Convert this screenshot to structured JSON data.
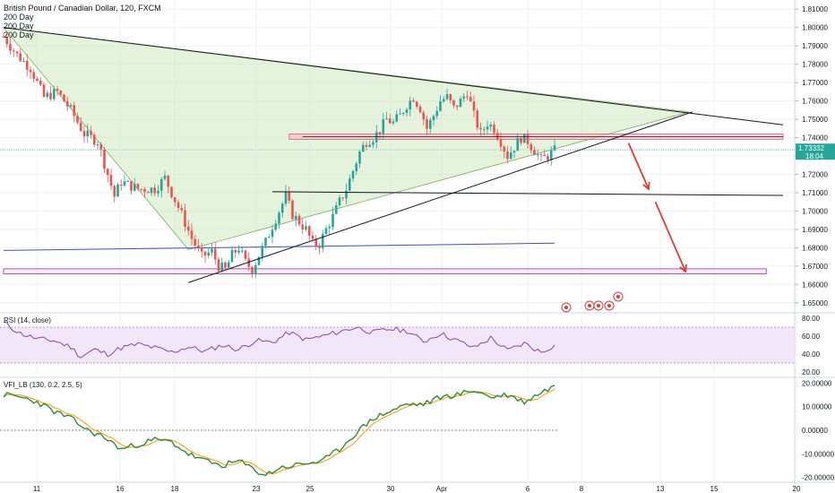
{
  "header": {
    "title": "British Pound / Canadian Dollar, 120, FXCM",
    "studies": [
      "200 Day",
      "200 Day",
      "200 Day"
    ]
  },
  "colors": {
    "up": "#26a69a",
    "down": "#ef5350",
    "triangle_fill": "#cfe8c0",
    "triangle_edge": "#7cb05a",
    "trendline": "#131722",
    "resistance_box_fill": "#f7b7c0",
    "resistance_box_edge": "#e0607e",
    "support_box_edge": "#9c27b0",
    "ma_line": "#3f51b5",
    "price_line": "#26a69a",
    "rsi_line": "#8e44ad",
    "rsi_band": "#ecdcf7",
    "vfi_line": "#2e8b3a",
    "vfi_signal": "#ff9800",
    "arrow": "#e53935",
    "axis_text": "#131722",
    "grid": "#eef0f3"
  },
  "price_axis": {
    "ticks": [
      "1.81000",
      "1.80000",
      "1.79000",
      "1.78000",
      "1.77000",
      "1.76000",
      "1.75000",
      "1.74000",
      "1.73000",
      "1.72000",
      "1.71000",
      "1.70000",
      "1.69000",
      "1.68000",
      "1.67000",
      "1.66000",
      "1.65000"
    ],
    "last_price": "1.73332",
    "countdown": "18:04"
  },
  "rsi_panel": {
    "label": "RSI (14, close)",
    "ticks": [
      "80.00",
      "60.00",
      "40.00",
      "20.00"
    ]
  },
  "vfi_panel": {
    "label": "VFI_LB (130, 0.2, 2.5, 5)",
    "ticks": [
      "20.00000",
      "10.00000",
      "0.00000",
      "-10.00000",
      "-20.00000"
    ]
  },
  "time_axis": {
    "ticks": [
      "11",
      "16",
      "18",
      "23",
      "25",
      "30",
      "Apr",
      "6",
      "8",
      "13",
      "15",
      "20"
    ]
  },
  "chart_data": {
    "type": "candlestick",
    "title": "British Pound / Canadian Dollar, 120, FXCM",
    "ylim": [
      1.645,
      1.815
    ],
    "price_path": [
      [
        0,
        1.795
      ],
      [
        4,
        1.785
      ],
      [
        8,
        1.778
      ],
      [
        12,
        1.762
      ],
      [
        16,
        1.765
      ],
      [
        20,
        1.755
      ],
      [
        24,
        1.742
      ],
      [
        28,
        1.738
      ],
      [
        31,
        1.72
      ],
      [
        33,
        1.708
      ],
      [
        35,
        1.716
      ],
      [
        40,
        1.712
      ],
      [
        45,
        1.712
      ],
      [
        48,
        1.718
      ],
      [
        50,
        1.71
      ],
      [
        53,
        1.698
      ],
      [
        56,
        1.685
      ],
      [
        59,
        1.675
      ],
      [
        62,
        1.678
      ],
      [
        64,
        1.67
      ],
      [
        66,
        1.668
      ],
      [
        68,
        1.676
      ],
      [
        70,
        1.68
      ],
      [
        72,
        1.672
      ],
      [
        74,
        1.668
      ],
      [
        76,
        1.676
      ],
      [
        78,
        1.683
      ],
      [
        80,
        1.692
      ],
      [
        82,
        1.7
      ],
      [
        84,
        1.708
      ],
      [
        86,
        1.698
      ],
      [
        88,
        1.694
      ],
      [
        90,
        1.69
      ],
      [
        92,
        1.682
      ],
      [
        94,
        1.682
      ],
      [
        96,
        1.69
      ],
      [
        98,
        1.697
      ],
      [
        100,
        1.705
      ],
      [
        102,
        1.712
      ],
      [
        104,
        1.722
      ],
      [
        106,
        1.732
      ],
      [
        108,
        1.738
      ],
      [
        110,
        1.74
      ],
      [
        112,
        1.744
      ],
      [
        114,
        1.75
      ],
      [
        116,
        1.748
      ],
      [
        118,
        1.752
      ],
      [
        120,
        1.758
      ],
      [
        122,
        1.762
      ],
      [
        124,
        1.756
      ],
      [
        126,
        1.745
      ],
      [
        128,
        1.752
      ],
      [
        130,
        1.76
      ],
      [
        132,
        1.762
      ],
      [
        134,
        1.756
      ],
      [
        136,
        1.76
      ],
      [
        138,
        1.765
      ],
      [
        140,
        1.752
      ],
      [
        142,
        1.742
      ],
      [
        144,
        1.748
      ],
      [
        146,
        1.745
      ],
      [
        148,
        1.738
      ],
      [
        150,
        1.73
      ],
      [
        152,
        1.735
      ],
      [
        154,
        1.74
      ],
      [
        156,
        1.738
      ],
      [
        158,
        1.733
      ],
      [
        160,
        1.728
      ],
      [
        162,
        1.73
      ],
      [
        164,
        1.733
      ]
    ],
    "n_bars": 165,
    "annotations": {
      "descending_trendline": [
        [
          0,
          1.8
        ],
        [
          232,
          1.747
        ]
      ],
      "ascending_trendline": [
        [
          55,
          1.661
        ],
        [
          205,
          1.754
        ]
      ],
      "triangle": [
        [
          0,
          1.8
        ],
        [
          204,
          1.754
        ],
        [
          55,
          1.679
        ]
      ],
      "resistance_box": [
        [
          85,
          1.742
        ],
        [
          232,
          1.739
        ]
      ],
      "horizontal_line": [
        [
          80,
          1.7105
        ],
        [
          232,
          1.7085
        ]
      ],
      "support_box": [
        [
          0,
          1.6685
        ],
        [
          227,
          1.6658
        ]
      ],
      "moving_average": [
        [
          0,
          1.6785
        ],
        [
          164,
          1.6825
        ]
      ],
      "arrows": [
        [
          [
            186,
            1.737
          ],
          [
            192,
            1.712
          ]
        ],
        [
          [
            194,
            1.705
          ],
          [
            203,
            1.667
          ]
        ]
      ]
    },
    "rsi": {
      "ylim": [
        15,
        85
      ],
      "upper_band": 70,
      "lower_band": 30,
      "path": [
        [
          0,
          75
        ],
        [
          5,
          63
        ],
        [
          10,
          57
        ],
        [
          15,
          55
        ],
        [
          20,
          48
        ],
        [
          23,
          37
        ],
        [
          27,
          45
        ],
        [
          31,
          40
        ],
        [
          35,
          47
        ],
        [
          40,
          51
        ],
        [
          45,
          47
        ],
        [
          50,
          42
        ],
        [
          55,
          48
        ],
        [
          60,
          43
        ],
        [
          65,
          50
        ],
        [
          70,
          45
        ],
        [
          75,
          55
        ],
        [
          80,
          53
        ],
        [
          85,
          64
        ],
        [
          90,
          56
        ],
        [
          95,
          60
        ],
        [
          100,
          65
        ],
        [
          105,
          70
        ],
        [
          110,
          64
        ],
        [
          115,
          68
        ],
        [
          120,
          66
        ],
        [
          125,
          54
        ],
        [
          130,
          63
        ],
        [
          135,
          55
        ],
        [
          140,
          47
        ],
        [
          145,
          58
        ],
        [
          150,
          44
        ],
        [
          155,
          52
        ],
        [
          160,
          42
        ],
        [
          164,
          50
        ]
      ]
    },
    "vfi": {
      "ylim": [
        -22,
        22
      ],
      "path": [
        [
          0,
          15
        ],
        [
          5,
          14
        ],
        [
          10,
          12
        ],
        [
          15,
          8
        ],
        [
          20,
          5
        ],
        [
          25,
          0
        ],
        [
          30,
          -3
        ],
        [
          35,
          -8
        ],
        [
          40,
          -6
        ],
        [
          45,
          -4
        ],
        [
          50,
          -5
        ],
        [
          55,
          -10
        ],
        [
          60,
          -13
        ],
        [
          65,
          -15
        ],
        [
          70,
          -13
        ],
        [
          75,
          -17
        ],
        [
          78,
          -19
        ],
        [
          82,
          -16
        ],
        [
          86,
          -15
        ],
        [
          90,
          -14
        ],
        [
          95,
          -13
        ],
        [
          100,
          -8
        ],
        [
          105,
          -1
        ],
        [
          110,
          5
        ],
        [
          115,
          8
        ],
        [
          120,
          11
        ],
        [
          125,
          11
        ],
        [
          130,
          14
        ],
        [
          135,
          15
        ],
        [
          140,
          17
        ],
        [
          145,
          14
        ],
        [
          150,
          15
        ],
        [
          155,
          12
        ],
        [
          160,
          16
        ],
        [
          164,
          19
        ]
      ]
    }
  }
}
